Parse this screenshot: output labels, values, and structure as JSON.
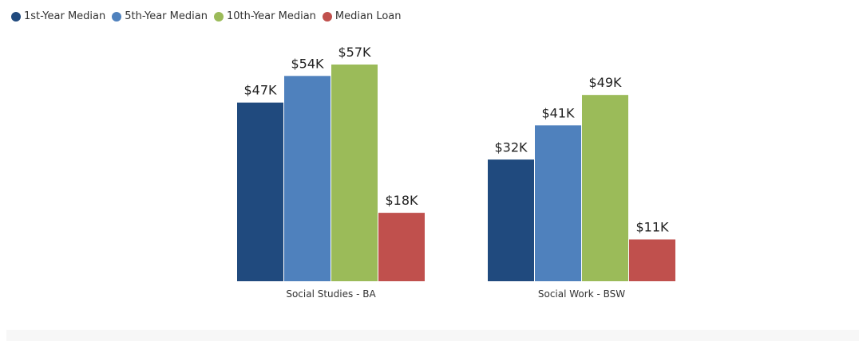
{
  "chart_data": {
    "type": "bar",
    "title": "",
    "categories": [
      "Social Studies - BA",
      "Social Work - BSW"
    ],
    "series": [
      {
        "name": "1st-Year Median",
        "color": "#204a7e",
        "values": [
          47,
          32
        ],
        "labels": [
          "$47K",
          "$32K"
        ]
      },
      {
        "name": "5th-Year Median",
        "color": "#4f81bd",
        "values": [
          54,
          41
        ],
        "labels": [
          "$54K",
          "$41K"
        ]
      },
      {
        "name": "10th-Year Median",
        "color": "#9bbb59",
        "values": [
          57,
          49
        ],
        "labels": [
          "$57K",
          "$49K"
        ]
      },
      {
        "name": "Median Loan",
        "color": "#c0504d",
        "values": [
          18,
          11
        ],
        "labels": [
          "$18K",
          "$11K"
        ]
      }
    ],
    "ylim": [
      0,
      57
    ],
    "grid": false,
    "legend": "top-left"
  }
}
